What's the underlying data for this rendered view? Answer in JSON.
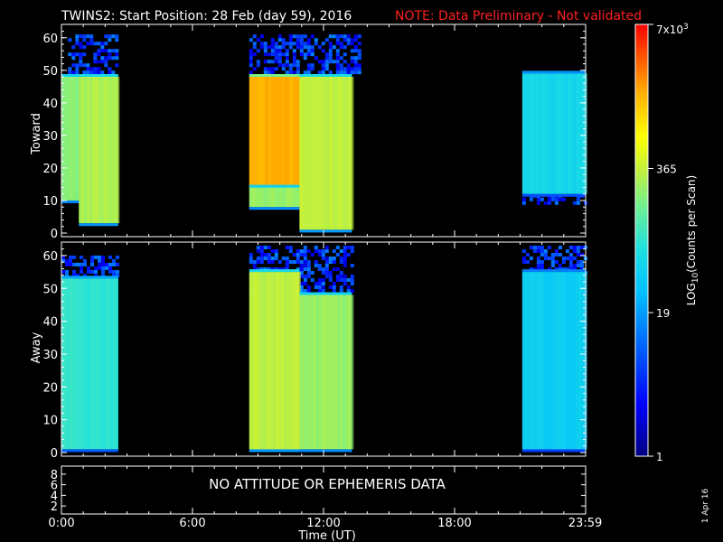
{
  "title": "TWINS2: Start Position: 28 Feb (day  59), 2016",
  "note": "NOTE: Data Preliminary - Not validated",
  "side_date": "1 Apr 16",
  "colors": {
    "background": "#000000",
    "note": "#ff2020",
    "axes": "#ffffff"
  },
  "chart_data": [
    {
      "type": "heatmap",
      "ylabel": "Toward",
      "ylim": [
        0,
        63
      ],
      "yticks": [
        0,
        10,
        20,
        30,
        40,
        50,
        60
      ],
      "xlim": [
        0,
        24
      ],
      "blocks": [
        {
          "x0": 0.0,
          "x1": 0.8,
          "y0": 10,
          "y1": 48,
          "level": 0.6
        },
        {
          "x0": 0.8,
          "x1": 2.6,
          "y0": 3,
          "y1": 48,
          "level": 0.64
        },
        {
          "x0": 8.6,
          "x1": 10.9,
          "y0": 14,
          "y1": 48,
          "level": 0.84
        },
        {
          "x0": 8.6,
          "x1": 10.9,
          "y0": 8,
          "y1": 14,
          "level": 0.62
        },
        {
          "x0": 10.9,
          "x1": 13.3,
          "y0": 1,
          "y1": 48,
          "level": 0.66
        },
        {
          "x0": 21.1,
          "x1": 23.98,
          "y0": 12,
          "y1": 49,
          "level": 0.45
        }
      ],
      "noise": [
        {
          "x0": 0.3,
          "x1": 2.6,
          "y0": 48,
          "y1": 61
        },
        {
          "x0": 8.6,
          "x1": 13.6,
          "y0": 48,
          "y1": 61
        },
        {
          "x0": 21.1,
          "x1": 23.98,
          "y0": 9,
          "y1": 12
        }
      ]
    },
    {
      "type": "heatmap",
      "ylabel": "Away",
      "ylim": [
        0,
        63
      ],
      "yticks": [
        0,
        10,
        20,
        30,
        40,
        50,
        60
      ],
      "xlim": [
        0,
        24
      ],
      "blocks": [
        {
          "x0": 0.0,
          "x1": 2.6,
          "y0": 1,
          "y1": 53,
          "level": 0.5
        },
        {
          "x0": 8.6,
          "x1": 10.9,
          "y0": 1,
          "y1": 55,
          "level": 0.66
        },
        {
          "x0": 10.9,
          "x1": 13.3,
          "y0": 1,
          "y1": 48,
          "level": 0.62
        },
        {
          "x0": 21.1,
          "x1": 23.98,
          "y0": 1,
          "y1": 55,
          "level": 0.42
        }
      ],
      "noise": [
        {
          "x0": 0.0,
          "x1": 2.6,
          "y0": 53,
          "y1": 60
        },
        {
          "x0": 8.6,
          "x1": 13.3,
          "y0": 48,
          "y1": 63
        },
        {
          "x0": 21.1,
          "x1": 23.98,
          "y0": 55,
          "y1": 63
        }
      ]
    },
    {
      "type": "table",
      "yticks": [
        2,
        4,
        6,
        8
      ],
      "message": "NO ATTITUDE OR EPHEMERIS DATA"
    }
  ],
  "xaxis": {
    "label": "Time (UT)",
    "ticks": [
      {
        "value": 0,
        "label": "0:00"
      },
      {
        "value": 6,
        "label": "6:00"
      },
      {
        "value": 12,
        "label": "12:00"
      },
      {
        "value": 18,
        "label": "18:00"
      },
      {
        "value": 23.98,
        "label": "23:59"
      }
    ]
  },
  "colorbar": {
    "label": "LOG10(Counts per Scan)",
    "ticks": [
      {
        "value": 1,
        "label": "1"
      },
      {
        "value": 19,
        "label": "19"
      },
      {
        "value": 365,
        "label": "365"
      },
      {
        "value": 7000,
        "label": "7x10^3"
      }
    ],
    "min": 1,
    "max": 7000
  }
}
